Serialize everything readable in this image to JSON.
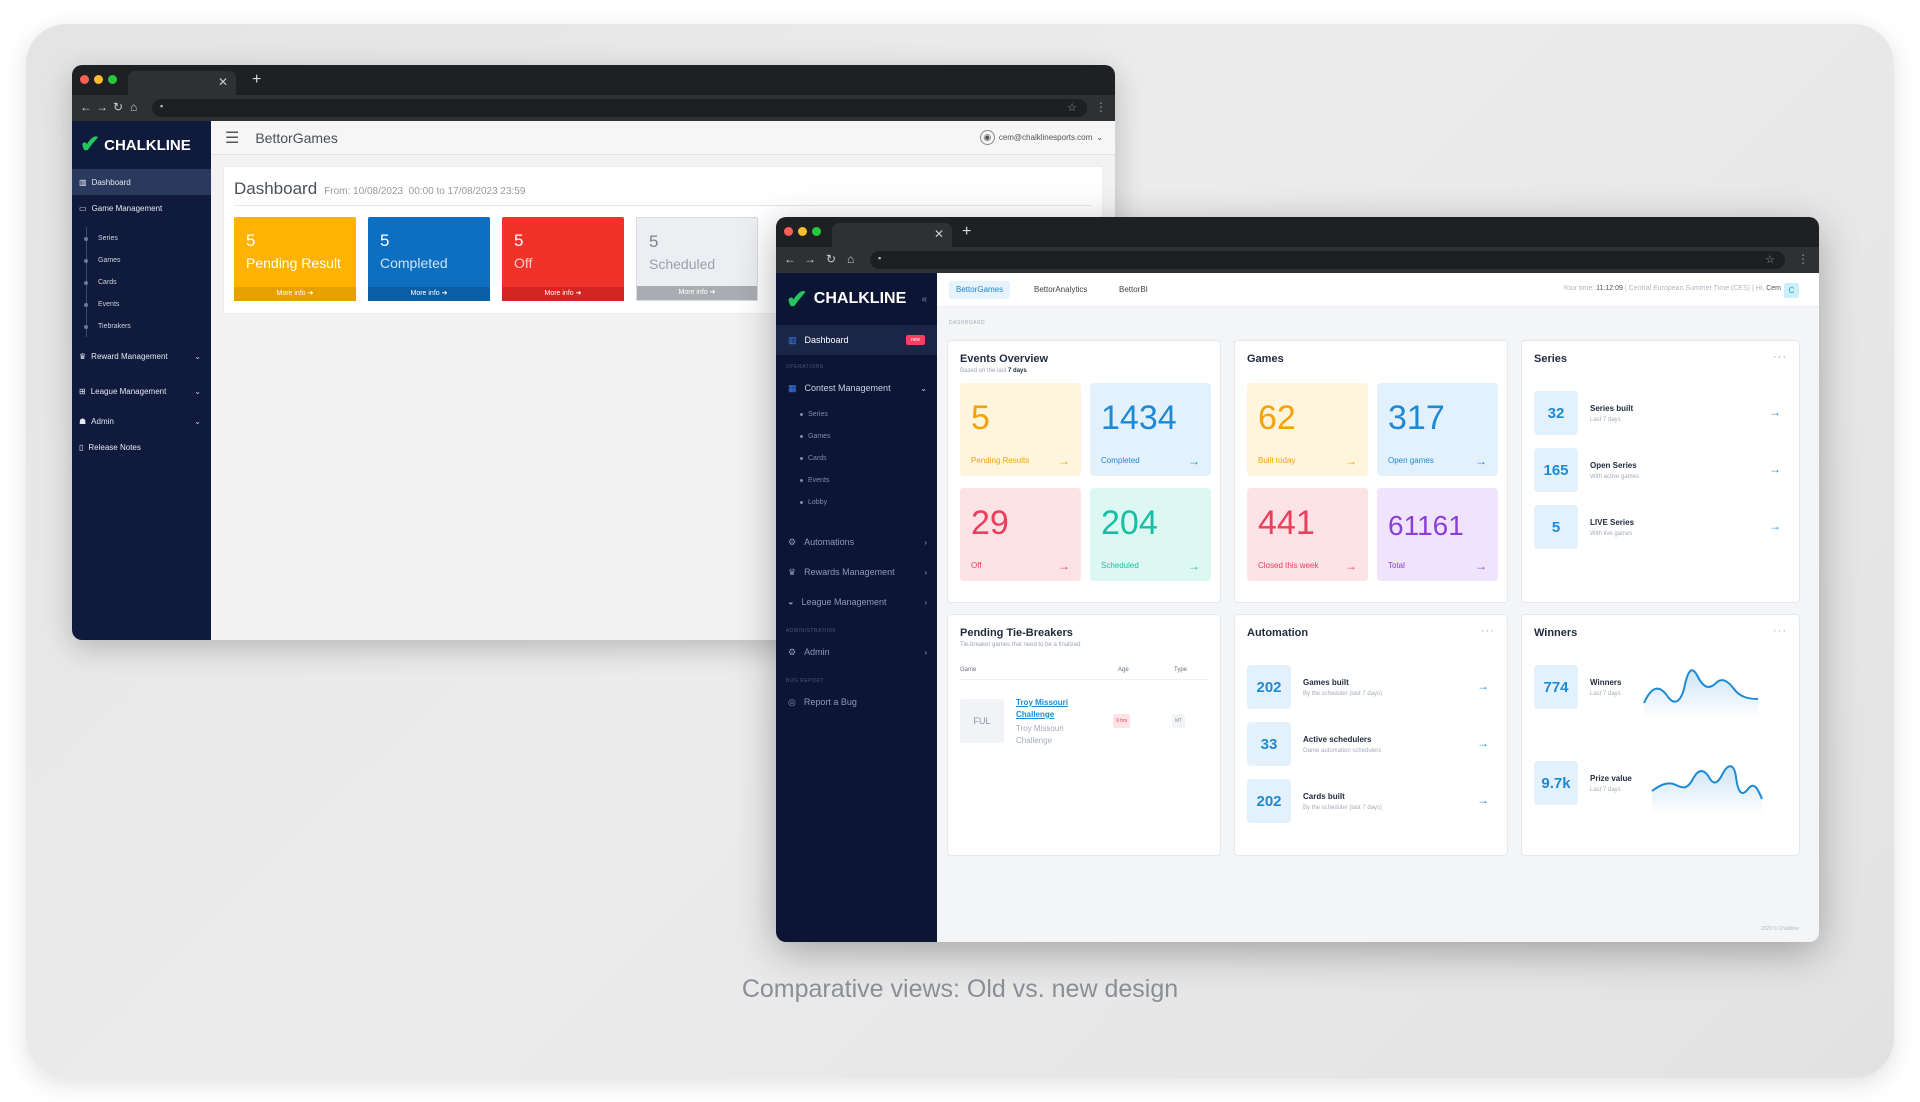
{
  "caption": "Comparative views: Old vs. new design",
  "colors": {
    "old_pending": "#ffb300",
    "old_completed": "#0c6fbf",
    "old_off": "#f0322b",
    "old_scheduled": "#eceef1",
    "new_accent": "#1e8ad6",
    "sidebar_dark": "#0d1535"
  },
  "old": {
    "logo": "CHALKLINE",
    "app_title": "BettorGames",
    "user": "cem@chalklinesports.com",
    "sidebar": {
      "dashboard": "Dashboard",
      "game_management": "Game Management",
      "subs": [
        "Series",
        "Games",
        "Cards",
        "Events",
        "Tiebrakers"
      ],
      "reward_management": "Reward Management",
      "league_management": "League Management",
      "admin": "Admin",
      "release_notes": "Release Notes"
    },
    "page_title": "Dashboard",
    "date_range": "From: 10/08/2023  00:00 to 17/08/2023 23:59",
    "cards": [
      {
        "value": "5",
        "label": "Pending Result",
        "more": "More info"
      },
      {
        "value": "5",
        "label": "Completed",
        "more": "More info"
      },
      {
        "value": "5",
        "label": "Off",
        "more": "More info"
      },
      {
        "value": "5",
        "label": "Scheduled",
        "more": "More info"
      }
    ]
  },
  "new": {
    "logo": "CHALKLINE",
    "tabs": [
      "BettorGames",
      "BettorAnalytics",
      "BettorBI"
    ],
    "time_label": "Your time:",
    "time_value": "11:12:09",
    "timezone": "Central European Summer Time (CES)",
    "greeting": "Hi,",
    "user_name": "Cem",
    "avatar": "C",
    "breadcrumb": "DASHBOARD",
    "footer": "2023 © Chalkline",
    "sidebar": {
      "dashboard": "Dashboard",
      "dashboard_badge": "new",
      "head_operations": "OPERATIONS",
      "contest_management": "Contest Management",
      "subs": [
        "Series",
        "Games",
        "Cards",
        "Events",
        "Lobby"
      ],
      "automations": "Automations",
      "rewards_management": "Rewards Management",
      "league_management": "League Management",
      "head_administration": "ADMINISTRATION",
      "admin": "Admin",
      "head_bug": "BUG REPORT",
      "report_bug": "Report a Bug"
    },
    "events_overview": {
      "title": "Events Overview",
      "subtitle_prefix": "Based on the last",
      "subtitle_strong": "7 days",
      "tiles": [
        {
          "value": "5",
          "label": "Pending Results"
        },
        {
          "value": "1434",
          "label": "Completed"
        },
        {
          "value": "29",
          "label": "Off"
        },
        {
          "value": "204",
          "label": "Scheduled"
        }
      ]
    },
    "games": {
      "title": "Games",
      "tiles": [
        {
          "value": "62",
          "label": "Built today"
        },
        {
          "value": "317",
          "label": "Open games"
        },
        {
          "value": "441",
          "label": "Closed this week"
        },
        {
          "value": "61161",
          "label": "Total"
        }
      ]
    },
    "series": {
      "title": "Series",
      "rows": [
        {
          "value": "32",
          "title": "Series built",
          "sub": "Last 7 days"
        },
        {
          "value": "165",
          "title": "Open Series",
          "sub": "With active games"
        },
        {
          "value": "5",
          "title": "LIVE Series",
          "sub": "With live games"
        }
      ]
    },
    "tiebreakers": {
      "title": "Pending Tie-Breakers",
      "subtitle": "Tie-breaker games that need to be a finalized",
      "col_game": "Game",
      "col_age": "Age",
      "col_type": "Type",
      "row": {
        "badge": "FUL",
        "link": "Troy Missouri Challenge",
        "desc": "Troy Missouri Challenge",
        "age": "9 hrs",
        "type": "MT"
      }
    },
    "automation": {
      "title": "Automation",
      "rows": [
        {
          "value": "202",
          "title": "Games built",
          "sub": "By the scheduler (last 7 days)"
        },
        {
          "value": "33",
          "title": "Active schedulers",
          "sub": "Game automation schedulers"
        },
        {
          "value": "202",
          "title": "Cards built",
          "sub": "By the scheduler (last 7 days)"
        }
      ]
    },
    "winners": {
      "title": "Winners",
      "rows": [
        {
          "value": "774",
          "title": "Winners",
          "sub": "Last 7 days"
        },
        {
          "value": "9.7k",
          "title": "Prize value",
          "sub": "Last 7 days"
        }
      ]
    }
  }
}
